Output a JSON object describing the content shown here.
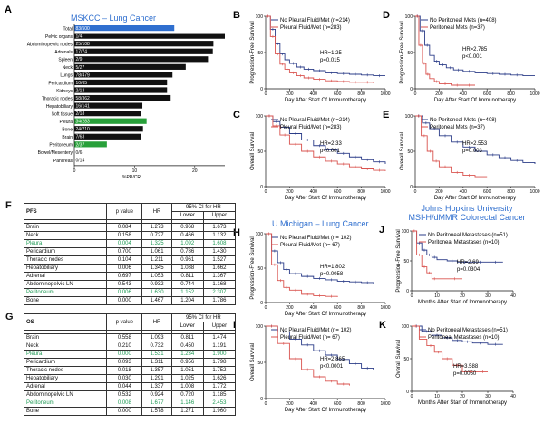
{
  "panels": {
    "A": "A",
    "B": "B",
    "C": "C",
    "D": "D",
    "E": "E",
    "F": "F",
    "G": "G",
    "H": "H",
    "I": "I",
    "J": "J",
    "K": "K"
  },
  "colors": {
    "black": "#111111",
    "blue": "#2f6fcf",
    "green": "#28a03a",
    "red": "#d9534f",
    "navy": "#2b3c88",
    "highlight": "#1f9a55"
  },
  "chart_data": [
    {
      "id": "A",
      "type": "bar",
      "orientation": "horizontal",
      "title": "MSKCC – Lung Cancer",
      "xlabel": "%PR/CR",
      "xlim": [
        0,
        25
      ],
      "xticks": [
        0,
        10,
        20
      ],
      "categories": [
        "Total",
        "Pelvic organs",
        "Abdominopelvic nodes",
        "Adrenals",
        "Spleen",
        "Neck",
        "Lungs",
        "Pericardium",
        "Kidneys",
        "Thoracic nodes",
        "Hepatobiliary",
        "Soft tissue",
        "Pleura",
        "Bone",
        "Brain",
        "Peritoneum",
        "Bowel/Mesentery",
        "Pancreas"
      ],
      "counts": [
        "83/500",
        "1/4",
        "25/108",
        "17/74",
        "2/9",
        "5/27",
        "78/479",
        "10/65",
        "2/13",
        "58/362",
        "16/141",
        "2/18",
        "34/283",
        "24/210",
        "7/63",
        "2/37",
        "0/6",
        "0/14"
      ],
      "values": [
        16.6,
        25,
        23.1,
        23.0,
        22.2,
        18.5,
        16.3,
        15.4,
        15.4,
        16.0,
        11.3,
        11.1,
        12.0,
        11.4,
        11.1,
        5.4,
        0,
        0
      ],
      "bar_colors": [
        "blue",
        "black",
        "black",
        "black",
        "black",
        "black",
        "black",
        "black",
        "black",
        "black",
        "black",
        "black",
        "green",
        "black",
        "black",
        "green",
        "black",
        "black"
      ]
    },
    {
      "id": "B",
      "type": "line",
      "subtype": "kaplan-meier",
      "xlabel": "Day After Start Of Immunotherapy",
      "ylabel": "Progression-Free Survival",
      "xlim": [
        0,
        1000
      ],
      "ylim": [
        0,
        100
      ],
      "xticks": [
        0,
        200,
        400,
        600,
        800,
        1000
      ],
      "yticks": [
        0,
        50,
        100
      ],
      "series": [
        {
          "name": "No Pleural Fluid/Met (n=214)",
          "color": "navy",
          "x": [
            0,
            40,
            80,
            120,
            160,
            200,
            260,
            320,
            400,
            500,
            600,
            700,
            800,
            900,
            1000
          ],
          "y": [
            100,
            82,
            62,
            48,
            40,
            35,
            30,
            27,
            25,
            22,
            21,
            20,
            19,
            18,
            18
          ]
        },
        {
          "name": "Pleural Fluid/Met (n=283)",
          "color": "red",
          "x": [
            0,
            40,
            80,
            120,
            160,
            200,
            260,
            320,
            400,
            500,
            600,
            700,
            800,
            900
          ],
          "y": [
            100,
            72,
            48,
            34,
            27,
            22,
            18,
            15,
            13,
            11,
            10,
            9,
            9,
            8
          ]
        }
      ],
      "annotations": [
        "HR=1.25",
        "p=0.015"
      ]
    },
    {
      "id": "C",
      "type": "line",
      "subtype": "kaplan-meier",
      "xlabel": "Day After Start Of Immunotherapy",
      "ylabel": "Overall Survival",
      "xlim": [
        0,
        1000
      ],
      "ylim": [
        0,
        100
      ],
      "xticks": [
        0,
        200,
        400,
        600,
        800,
        1000
      ],
      "yticks": [
        0,
        50,
        100
      ],
      "series": [
        {
          "name": "No Pleural Fluid/Met (n=214)",
          "color": "navy",
          "x": [
            0,
            60,
            120,
            200,
            300,
            400,
            500,
            600,
            700,
            800,
            900,
            1000
          ],
          "y": [
            100,
            92,
            84,
            75,
            66,
            58,
            52,
            47,
            42,
            38,
            35,
            32
          ]
        },
        {
          "name": "Pleural Fluid/Met (n=283)",
          "color": "red",
          "x": [
            0,
            60,
            120,
            200,
            300,
            400,
            500,
            600,
            700,
            800,
            900,
            1000
          ],
          "y": [
            100,
            86,
            73,
            60,
            50,
            42,
            36,
            32,
            28,
            25,
            23,
            22
          ]
        }
      ],
      "annotations": [
        "HR=2.33",
        "p<0.001"
      ]
    },
    {
      "id": "D",
      "type": "line",
      "subtype": "kaplan-meier",
      "xlabel": "Day After Start Of Immunotherapy",
      "ylabel": "Progression-Free Survival",
      "xlim": [
        0,
        1000
      ],
      "ylim": [
        0,
        100
      ],
      "xticks": [
        0,
        200,
        400,
        600,
        800,
        1000
      ],
      "yticks": [
        0,
        50,
        100
      ],
      "series": [
        {
          "name": "No Peritoneal Mets (n=408)",
          "color": "navy",
          "x": [
            0,
            40,
            80,
            120,
            160,
            200,
            260,
            320,
            400,
            500,
            600,
            700,
            800,
            900,
            1000
          ],
          "y": [
            100,
            80,
            60,
            46,
            38,
            33,
            29,
            26,
            24,
            22,
            21,
            20,
            19,
            18,
            18
          ]
        },
        {
          "name": "Peritoneal Mets (n=37)",
          "color": "red",
          "x": [
            0,
            30,
            60,
            90,
            120,
            160,
            200,
            300,
            400,
            500
          ],
          "y": [
            100,
            60,
            35,
            20,
            14,
            10,
            7,
            5,
            5,
            5
          ]
        }
      ],
      "annotations": [
        "HR=2.785",
        "p<0.001"
      ]
    },
    {
      "id": "E",
      "type": "line",
      "subtype": "kaplan-meier",
      "xlabel": "Day After Start Of Immunotherapy",
      "ylabel": "Overall Survival",
      "xlim": [
        0,
        1000
      ],
      "ylim": [
        0,
        100
      ],
      "xticks": [
        0,
        200,
        400,
        600,
        800,
        1000
      ],
      "yticks": [
        0,
        50,
        100
      ],
      "series": [
        {
          "name": "No Peritoneal Mets (n=408)",
          "color": "navy",
          "x": [
            0,
            60,
            120,
            200,
            300,
            400,
            500,
            600,
            700,
            800,
            900,
            1000
          ],
          "y": [
            100,
            90,
            82,
            72,
            63,
            56,
            50,
            45,
            41,
            37,
            34,
            32
          ]
        },
        {
          "name": "Peritoneal Mets (n=37)",
          "color": "red",
          "x": [
            0,
            50,
            100,
            150,
            200,
            300,
            400,
            500,
            600
          ],
          "y": [
            100,
            72,
            50,
            36,
            28,
            20,
            16,
            14,
            14
          ]
        }
      ],
      "annotations": [
        "HR=2.553",
        "p=0.003"
      ]
    },
    {
      "id": "H",
      "type": "line",
      "subtype": "kaplan-meier",
      "title": "U Michigan – Lung Cancer",
      "xlabel": "Day After Start Of Immunotherapy",
      "ylabel": "Progression-Free Survival",
      "xlim": [
        0,
        1000
      ],
      "ylim": [
        0,
        100
      ],
      "xticks": [
        0,
        200,
        400,
        600,
        800,
        1000
      ],
      "yticks": [
        0,
        50,
        100
      ],
      "series": [
        {
          "name": "No Pleural Fluid/Met (n= 102)",
          "color": "navy",
          "x": [
            0,
            50,
            100,
            150,
            200,
            300,
            400,
            500,
            600,
            700,
            800,
            900
          ],
          "y": [
            100,
            75,
            58,
            48,
            42,
            38,
            35,
            33,
            31,
            30,
            29,
            28
          ]
        },
        {
          "name": "Pleural Fluid/Met (n= 67)",
          "color": "red",
          "x": [
            0,
            50,
            100,
            150,
            200,
            300,
            400,
            500,
            600
          ],
          "y": [
            100,
            55,
            32,
            22,
            18,
            12,
            10,
            9,
            8
          ]
        }
      ],
      "annotations": [
        "HR=1.802",
        "p=0.0058"
      ]
    },
    {
      "id": "I",
      "type": "line",
      "subtype": "kaplan-meier",
      "xlabel": "Day After Start Of Immunotherapy",
      "ylabel": "Overall Survival",
      "xlim": [
        0,
        1000
      ],
      "ylim": [
        0,
        100
      ],
      "xticks": [
        0,
        200,
        400,
        600,
        800,
        1000
      ],
      "yticks": [
        0,
        50,
        100
      ],
      "series": [
        {
          "name": "No Pleural Fluid/Met (n= 102)",
          "color": "navy",
          "x": [
            0,
            100,
            200,
            300,
            400,
            500,
            600,
            700,
            800,
            900
          ],
          "y": [
            100,
            92,
            82,
            74,
            66,
            60,
            54,
            48,
            42,
            40
          ]
        },
        {
          "name": "Pleural Fluid/Met (n= 67)",
          "color": "red",
          "x": [
            0,
            100,
            200,
            300,
            400,
            500,
            600,
            700
          ],
          "y": [
            100,
            76,
            55,
            40,
            30,
            24,
            20,
            18
          ]
        }
      ],
      "annotations": [
        "HR=2.865",
        "p<0.0001"
      ]
    },
    {
      "id": "J",
      "type": "line",
      "subtype": "kaplan-meier",
      "title": "Johns Hopkins University MSI-H/dMMR Colorectal Cancer",
      "xlabel": "Months After Start of Immunotherapy",
      "ylabel": "Progression-Free Survival",
      "xlim": [
        0,
        40
      ],
      "ylim": [
        0,
        100
      ],
      "xticks": [
        0,
        10,
        20,
        30,
        40
      ],
      "yticks": [
        0,
        50,
        100
      ],
      "series": [
        {
          "name": "No Peritoneal Metastases (n=51)",
          "color": "navy",
          "x": [
            0,
            2,
            4,
            6,
            8,
            10,
            14,
            18,
            24,
            30,
            36
          ],
          "y": [
            100,
            80,
            68,
            60,
            56,
            52,
            50,
            48,
            48,
            48,
            48
          ]
        },
        {
          "name": "Peritoneal Metastases (n=10)",
          "color": "red",
          "x": [
            0,
            2,
            4,
            6,
            8,
            10,
            14,
            20
          ],
          "y": [
            100,
            60,
            40,
            30,
            20,
            20,
            20,
            20
          ]
        }
      ],
      "annotations": [
        "HR=2.69",
        "p=0.0304"
      ]
    },
    {
      "id": "K",
      "type": "line",
      "subtype": "kaplan-meier",
      "xlabel": "Months After Start of Immunotherapy",
      "ylabel": "Overall Survival",
      "xlim": [
        0,
        40
      ],
      "ylim": [
        0,
        100
      ],
      "xticks": [
        0,
        10,
        20,
        30,
        40
      ],
      "yticks": [
        0,
        50,
        100
      ],
      "series": [
        {
          "name": "No Peritoneal Metastases (n=51)",
          "color": "navy",
          "x": [
            0,
            4,
            8,
            12,
            16,
            20,
            24,
            30,
            36
          ],
          "y": [
            100,
            92,
            86,
            82,
            78,
            76,
            74,
            72,
            72
          ]
        },
        {
          "name": "Peritoneal Metastases (n=10)",
          "color": "red",
          "x": [
            0,
            3,
            6,
            9,
            12,
            16,
            20,
            26,
            30
          ],
          "y": [
            100,
            80,
            70,
            60,
            50,
            40,
            30,
            30,
            30
          ]
        }
      ],
      "annotations": [
        "HR=3.588",
        "p=0.0050"
      ]
    },
    {
      "id": "F",
      "type": "table",
      "name": "PFS",
      "headers": [
        "PFS",
        "p value",
        "HR",
        "95% CI for HR",
        "Lower",
        "Upper"
      ],
      "rows": [
        [
          "Brain",
          "0.084",
          "1.273",
          "0.968",
          "1.673"
        ],
        [
          "Neck",
          "0.158",
          "0.727",
          "0.466",
          "1.132"
        ],
        [
          "Pleura",
          "0.004",
          "1.325",
          "1.092",
          "1.608"
        ],
        [
          "Pericardium",
          "0.700",
          "1.061",
          "0.786",
          "1.430"
        ],
        [
          "Thoracic nodes",
          "0.104",
          "1.211",
          "0.961",
          "1.527"
        ],
        [
          "Hepatobiliary",
          "0.006",
          "1.345",
          "1.088",
          "1.662"
        ],
        [
          "Adrenal",
          "0.697",
          "1.053",
          "0.811",
          "1.367"
        ],
        [
          "Abdominopelvic LN",
          "0.543",
          "0.932",
          "0.744",
          "1.168"
        ],
        [
          "Peritoneum",
          "0.006",
          "1.630",
          "1.152",
          "2.307"
        ],
        [
          "Bone",
          "0.000",
          "1.467",
          "1.204",
          "1.786"
        ]
      ],
      "highlight_rows": [
        2,
        8
      ]
    },
    {
      "id": "G",
      "type": "table",
      "name": "OS",
      "headers": [
        "OS",
        "p value",
        "HR",
        "95% CI for HR",
        "Lower",
        "Upper"
      ],
      "rows": [
        [
          "Brain",
          "0.558",
          "1.093",
          "0.811",
          "1.474"
        ],
        [
          "Neck",
          "0.210",
          "0.732",
          "0.450",
          "1.191"
        ],
        [
          "Pleura",
          "0.000",
          "1.531",
          "1.234",
          "1.900"
        ],
        [
          "Pericardium",
          "0.093",
          "1.311",
          "0.956",
          "1.798"
        ],
        [
          "Thoracic nodes",
          "0.018",
          "1.357",
          "1.051",
          "1.752"
        ],
        [
          "Hepatobiliary",
          "0.030",
          "1.291",
          "1.025",
          "1.626"
        ],
        [
          "Adrenal",
          "0.044",
          "1.337",
          "1.008",
          "1.772"
        ],
        [
          "Abdominopelvic LN",
          "0.532",
          "0.924",
          "0.720",
          "1.185"
        ],
        [
          "Peritoneum",
          "0.008",
          "1.677",
          "1.146",
          "2.453"
        ],
        [
          "Bone",
          "0.000",
          "1.578",
          "1.271",
          "1.960"
        ]
      ],
      "highlight_rows": [
        2,
        8
      ]
    }
  ]
}
